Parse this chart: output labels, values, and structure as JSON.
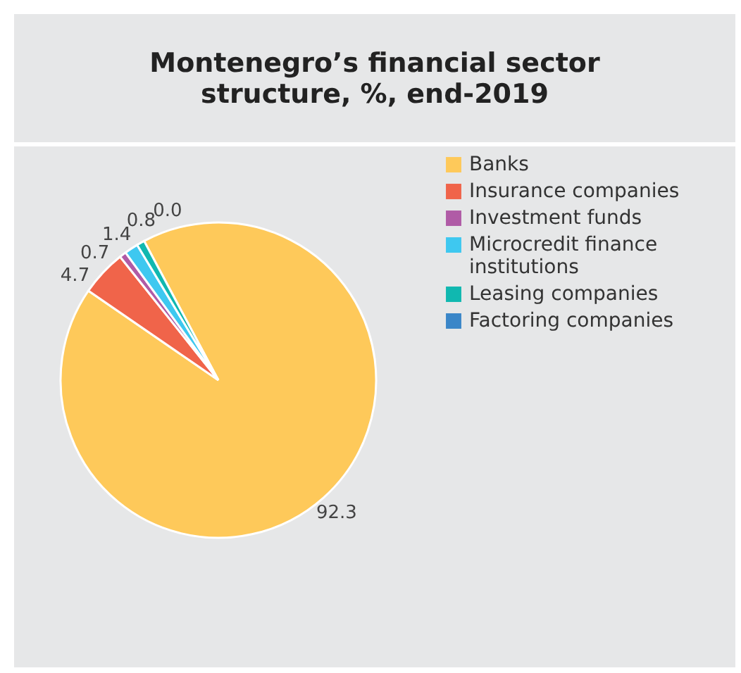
{
  "chart_data": {
    "type": "pie",
    "title": "Montenegro’s financial sector structure, %, end-2019",
    "categories": [
      "Banks",
      "Insurance companies",
      "Investment funds",
      "Microcredit finance institutions",
      "Leasing companies",
      "Factoring companies"
    ],
    "values": [
      92.3,
      4.7,
      0.7,
      1.4,
      0.8,
      0.0
    ],
    "colors": [
      "#fec95a",
      "#f0644a",
      "#b05ba6",
      "#3ec8f0",
      "#10b8b0",
      "#3a86c8"
    ],
    "value_labels": [
      "92.3",
      "4.7",
      "0.7",
      "1.4",
      "0.8",
      "0.0"
    ],
    "legend": "right"
  }
}
